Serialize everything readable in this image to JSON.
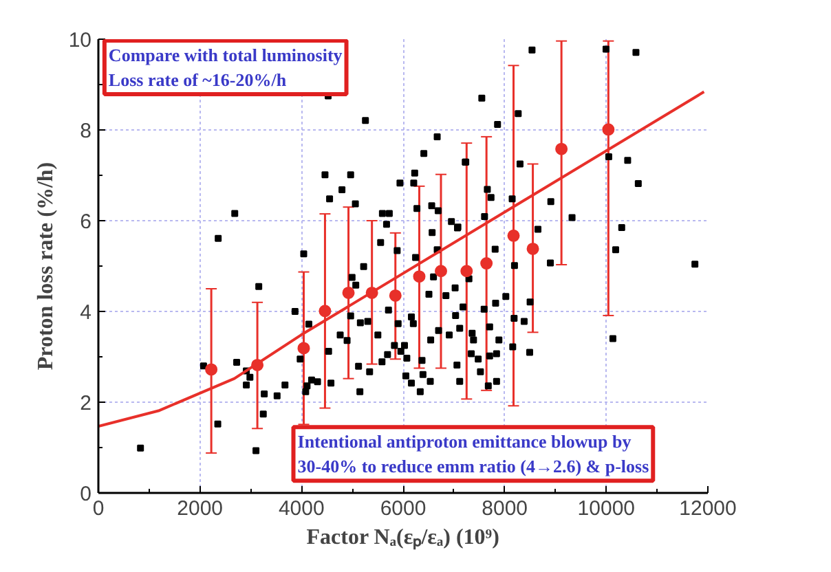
{
  "chart_data": {
    "type": "scatter",
    "xlabel": "Factor Nₐ(εₚ/εₐ) (10⁹)",
    "ylabel": "Proton loss rate (%/h)",
    "xlim": [
      0,
      12000
    ],
    "ylim": [
      0,
      10
    ],
    "xticks": [
      0,
      2000,
      4000,
      6000,
      8000,
      10000,
      12000
    ],
    "yticks": [
      0,
      2,
      4,
      6,
      8,
      10
    ],
    "grid": true,
    "annotations": [
      "Compare with total luminosity\nLoss rate of ~16-20%/h",
      "Intentional antiproton emittance blowup  by\n30-40% to reduce emm ratio (4→2.6) & p-loss"
    ],
    "series": [
      {
        "marker": "square",
        "color": "#000000",
        "x": [
          4524,
          5258,
          6671,
          6408,
          4462,
          4967,
          6228,
          6209,
          5938,
          4796,
          4552,
          5060,
          6563,
          6690,
          2685,
          5592,
          5728,
          5674,
          6951,
          7070,
          2359,
          6272,
          6571,
          5557,
          5883,
          6671,
          4043,
          6245,
          5223,
          7223,
          3158,
          4995,
          8538,
          9995,
          10584,
          7549,
          8266,
          7859,
          7234,
          8302,
          10049,
          10421,
          10630,
          7658,
          7731,
          8147,
          8908,
          7603,
          7079,
          8655,
          9326,
          10304,
          7812,
          10185,
          8899,
          8193,
          11745,
          7296,
          2071,
          2723,
          2913,
          2984,
          2913,
          3266,
          3247,
          3519,
          3674,
          2351,
          829,
          3103,
          3872,
          3973,
          4144,
          4109,
          4082,
          4198,
          4315,
          4533,
          4579,
          4761,
          4897,
          4967,
          5068,
          5122,
          5340,
          5149,
          5158,
          5304,
          5503,
          5584,
          5712,
          5693,
          5829,
          5956,
          6027,
          6073,
          6054,
          6163,
          5902,
          6163,
          6201,
          6372,
          6337,
          6391,
          6535,
          6543,
          6698,
          6843,
          7024,
          6908,
          7114,
          7060,
          7033,
          6508,
          6598,
          7179,
          7114,
          7359,
          7386,
          7342,
          7478,
          7522,
          7840,
          7704,
          7840,
          7677,
          7595,
          7821,
          8022,
          7886,
          7704,
          8185,
          8158,
          8383,
          8500,
          8492,
          10130
        ],
        "values": [
          8.75,
          8.21,
          7.85,
          7.48,
          7.01,
          7.01,
          7.05,
          6.83,
          6.83,
          6.68,
          6.48,
          6.37,
          6.33,
          6.22,
          6.16,
          6.16,
          6.16,
          5.92,
          5.98,
          5.84,
          5.61,
          6.27,
          5.74,
          5.52,
          5.34,
          5.36,
          5.27,
          5.19,
          4.99,
          7.29,
          4.55,
          4.75,
          9.76,
          9.78,
          9.71,
          8.7,
          8.36,
          8.12,
          7.29,
          7.25,
          7.41,
          7.33,
          6.82,
          6.69,
          6.51,
          6.48,
          6.42,
          6.09,
          5.86,
          5.81,
          6.07,
          5.85,
          5.37,
          5.36,
          5.07,
          5.01,
          5.04,
          4.72,
          2.8,
          2.88,
          2.69,
          2.55,
          2.38,
          2.18,
          1.74,
          2.14,
          2.38,
          1.52,
          0.99,
          0.93,
          4.0,
          2.95,
          3.72,
          2.36,
          2.23,
          2.49,
          2.45,
          3.12,
          2.42,
          3.48,
          3.36,
          3.9,
          4.58,
          2.79,
          2.67,
          2.23,
          3.75,
          3.78,
          3.48,
          2.89,
          4.03,
          3.05,
          3.25,
          3.12,
          3.25,
          2.97,
          2.58,
          2.42,
          3.73,
          3.88,
          3.73,
          2.92,
          2.23,
          2.61,
          2.46,
          3.37,
          3.58,
          4.35,
          4.52,
          3.48,
          2.46,
          2.82,
          3.91,
          4.38,
          4.76,
          4.1,
          3.63,
          3.52,
          3.37,
          3.07,
          2.95,
          2.67,
          2.46,
          3.02,
          3.07,
          2.36,
          4.05,
          4.18,
          4.33,
          3.37,
          3.66,
          3.85,
          3.22,
          3.78,
          4.21,
          3.1,
          3.4
        ]
      },
      {
        "marker": "circle",
        "color": "#e8302a",
        "x": [
          2223,
          3130,
          4043,
          4462,
          4924,
          5386,
          5848,
          6318,
          6745,
          7250,
          7641,
          8174,
          8554,
          9117,
          10041
        ],
        "values": [
          2.72,
          2.82,
          3.19,
          4.01,
          4.41,
          4.41,
          4.35,
          4.77,
          4.89,
          4.89,
          5.06,
          5.67,
          5.38,
          7.58,
          8.01
        ],
        "errors": [
          [
            0.88,
            4.5
          ],
          [
            1.42,
            4.2
          ],
          [
            1.51,
            4.87
          ],
          [
            1.87,
            6.15
          ],
          [
            2.52,
            6.3
          ],
          [
            2.84,
            6.0
          ],
          [
            2.95,
            5.73
          ],
          [
            2.75,
            6.76
          ],
          [
            2.75,
            7.02
          ],
          [
            2.07,
            7.71
          ],
          [
            2.26,
            7.85
          ],
          [
            1.92,
            9.42
          ],
          [
            3.54,
            7.25
          ],
          [
            5.03,
            9.96
          ],
          [
            3.91,
            9.96
          ]
        ]
      },
      {
        "type": "line",
        "color": "#e8302a",
        "x": [
          0,
          1182,
          2677,
          3989,
          11924
        ],
        "values": [
          1.47,
          1.81,
          2.52,
          3.48,
          8.84
        ]
      }
    ]
  }
}
